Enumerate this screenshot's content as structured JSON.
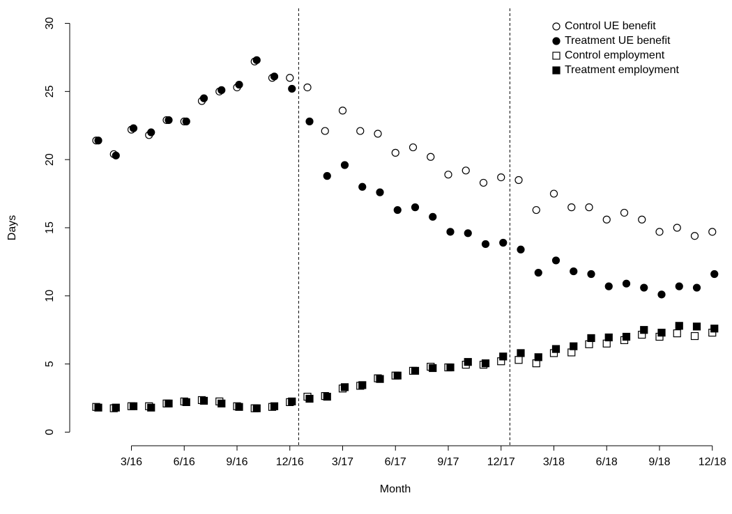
{
  "chart_data": {
    "type": "scatter",
    "xlabel": "Month",
    "ylabel": "Days",
    "categories": [
      null,
      null,
      "3/16",
      null,
      null,
      "6/16",
      null,
      null,
      "9/16",
      null,
      null,
      "12/16",
      null,
      null,
      "3/17",
      null,
      null,
      "6/17",
      null,
      null,
      "9/17",
      null,
      null,
      "12/17",
      null,
      null,
      "3/18",
      null,
      null,
      "6/18",
      null,
      null,
      "9/18",
      null,
      null,
      "12/18"
    ],
    "ylim": [
      -1,
      31.1
    ],
    "yticks": [
      0,
      5,
      10,
      15,
      20,
      25,
      30
    ],
    "vlines": [
      11.5,
      23.5
    ],
    "grid": false,
    "legend": "top-right",
    "series": [
      {
        "name": "Control UE benefit",
        "color": "#000000",
        "marker": "circle-open",
        "values": [
          21.4,
          20.4,
          22.2,
          21.8,
          22.9,
          22.8,
          24.3,
          25.0,
          25.3,
          27.2,
          26.0,
          26.0,
          25.3,
          22.1,
          23.6,
          22.1,
          21.9,
          20.5,
          20.9,
          20.2,
          18.9,
          19.2,
          18.3,
          18.7,
          18.5,
          16.3,
          17.5,
          16.5,
          16.5,
          15.6,
          16.1,
          15.6,
          14.7,
          15.0,
          14.4,
          14.7
        ]
      },
      {
        "name": "Treatment UE benefit",
        "color": "#000000",
        "marker": "circle-filled",
        "values": [
          21.4,
          20.3,
          22.3,
          22.0,
          22.9,
          22.8,
          24.5,
          25.1,
          25.5,
          27.3,
          26.1,
          25.2,
          22.8,
          18.8,
          19.6,
          18.0,
          17.6,
          16.3,
          16.5,
          15.8,
          14.7,
          14.6,
          13.8,
          13.9,
          13.4,
          11.7,
          12.6,
          11.8,
          11.6,
          10.7,
          10.9,
          10.6,
          10.1,
          10.7,
          10.6,
          11.6
        ]
      },
      {
        "name": "Control employment",
        "color": "#000000",
        "marker": "square-open",
        "values": [
          1.85,
          1.75,
          1.9,
          1.9,
          2.1,
          2.25,
          2.35,
          2.25,
          1.9,
          1.75,
          1.85,
          2.2,
          2.6,
          2.65,
          3.2,
          3.4,
          3.95,
          4.15,
          4.5,
          4.8,
          4.75,
          4.95,
          4.95,
          5.2,
          5.3,
          5.05,
          5.8,
          5.85,
          6.45,
          6.5,
          6.75,
          7.15,
          7.0,
          7.25,
          7.05,
          7.3
        ]
      },
      {
        "name": "Treatment employment",
        "color": "#000000",
        "marker": "square-filled",
        "values": [
          1.8,
          1.8,
          1.9,
          1.8,
          2.1,
          2.2,
          2.3,
          2.1,
          1.85,
          1.75,
          1.9,
          2.25,
          2.45,
          2.6,
          3.3,
          3.45,
          3.9,
          4.15,
          4.5,
          4.7,
          4.75,
          5.15,
          5.05,
          5.55,
          5.8,
          5.5,
          6.1,
          6.3,
          6.9,
          6.95,
          7.0,
          7.5,
          7.3,
          7.8,
          7.75,
          7.6
        ]
      }
    ]
  }
}
